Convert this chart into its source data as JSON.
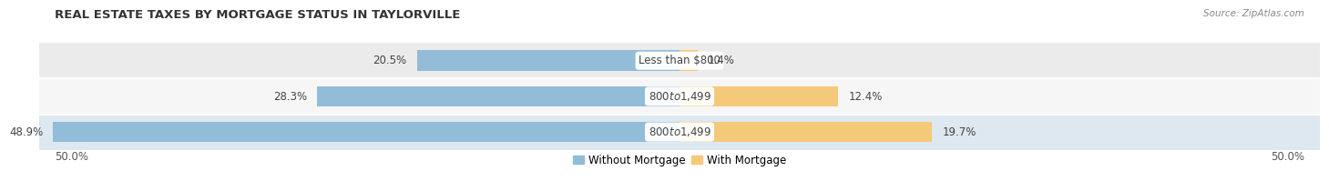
{
  "title": "REAL ESTATE TAXES BY MORTGAGE STATUS IN TAYLORVILLE",
  "source": "Source: ZipAtlas.com",
  "rows": [
    {
      "label": "Less than $800",
      "without": 20.5,
      "with": 1.4
    },
    {
      "label": "$800 to $1,499",
      "without": 28.3,
      "with": 12.4
    },
    {
      "label": "$800 to $1,499",
      "without": 48.9,
      "with": 19.7
    }
  ],
  "xlim": [
    -50,
    50
  ],
  "xticklabels_left": "50.0%",
  "xticklabels_right": "50.0%",
  "color_without": "#92bcd8",
  "color_with": "#f5c97a",
  "bar_height": 0.58,
  "row_bg_odd": "#ebebeb",
  "row_bg_even": "#f6f6f6",
  "row_bg_highlight": "#dde8f0",
  "legend_without": "Without Mortgage",
  "legend_with": "With Mortgage",
  "title_fontsize": 9.5,
  "source_fontsize": 7.5,
  "label_fontsize": 8.5,
  "pct_fontsize": 8.5,
  "axis_fontsize": 8.5
}
